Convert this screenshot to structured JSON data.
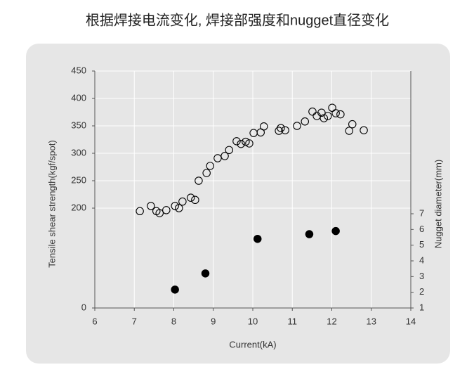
{
  "chart_data": {
    "type": "scatter",
    "title": "根据焊接电流变化, 焊接部强度和nugget直径变化",
    "x_label": "Current(kA)",
    "y_label": "Tensile shear strength(kgf/spot)",
    "y2_label": "Nugget diameter(mm)",
    "xlim": [
      6,
      14
    ],
    "xticks": [
      6,
      7,
      8,
      9,
      10,
      11,
      12,
      13,
      14
    ],
    "ylim": [
      0,
      450
    ],
    "yticks": [
      0,
      200,
      250,
      300,
      350,
      400,
      450
    ],
    "y2lim": [
      1,
      7
    ],
    "y2ticks": [
      1,
      2,
      3,
      4,
      5,
      6,
      7
    ],
    "grid": true,
    "series": [
      {
        "color": "#000000",
        "fill": "none",
        "x": [
          7.14,
          7.42,
          7.56,
          7.64,
          7.81,
          8.03,
          8.13,
          8.22,
          8.43,
          8.54,
          8.63,
          8.83,
          8.92,
          9.11,
          9.29,
          9.4,
          9.59,
          9.7,
          9.82,
          9.91,
          10.02,
          10.2,
          10.28,
          10.66,
          10.71,
          10.82,
          11.12,
          11.32,
          11.51,
          11.62,
          11.74,
          11.8,
          11.9,
          12.01,
          12.1,
          12.22,
          12.44,
          12.52,
          12.81
        ],
        "values": [
          194,
          204,
          194,
          190,
          196,
          204,
          200,
          212,
          219,
          215,
          250,
          264,
          277,
          291,
          295,
          306,
          322,
          317,
          321,
          318,
          337,
          338,
          349,
          341,
          346,
          342,
          350,
          358,
          376,
          368,
          374,
          364,
          368,
          383,
          373,
          371,
          341,
          353,
          342
        ]
      },
      {
        "color": "#000000",
        "fill": "#000000",
        "axis": "y2",
        "x": [
          8.03,
          8.8,
          10.12,
          11.43,
          12.1
        ],
        "values": [
          2.17,
          3.2,
          5.4,
          5.7,
          5.9
        ]
      }
    ]
  }
}
